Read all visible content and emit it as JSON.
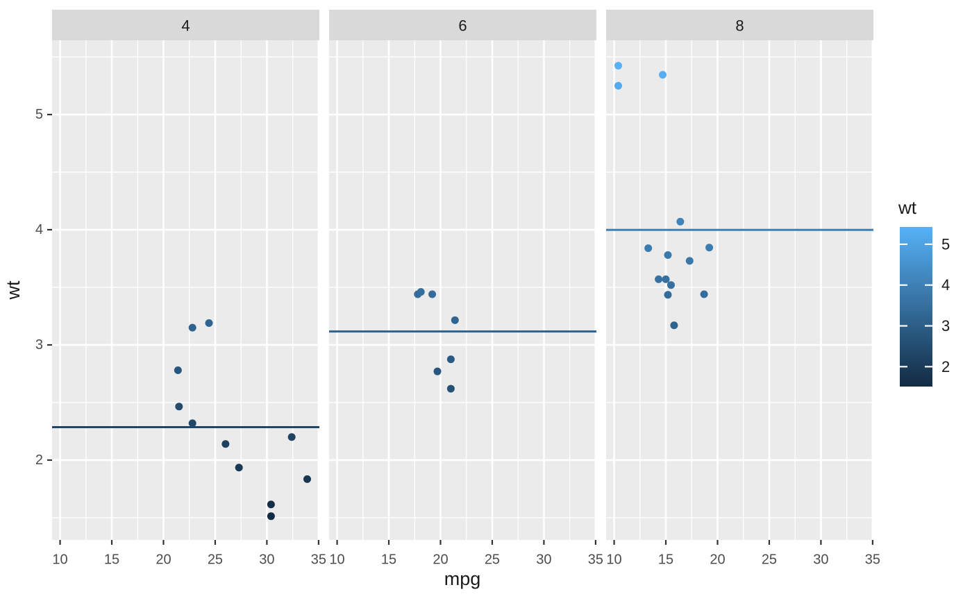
{
  "chart_data": {
    "type": "scatter",
    "title": "",
    "xlabel": "mpg",
    "ylabel": "wt",
    "facet_labels": [
      "4",
      "6",
      "8"
    ],
    "x_ticks": [
      10,
      15,
      20,
      25,
      30,
      35
    ],
    "x_minor_ticks": [
      12.5,
      17.5,
      22.5,
      27.5,
      32.5
    ],
    "y_ticks": [
      2,
      3,
      4,
      5
    ],
    "y_minor_ticks": [
      1.5,
      2.5,
      3.5,
      4.5,
      5.5
    ],
    "x_domain": [
      9.225,
      35.075
    ],
    "y_domain": [
      1.307,
      5.645
    ],
    "grid": true,
    "legend_position": "right",
    "color_scale": {
      "low": "#132B43",
      "high": "#56B1F7",
      "domain": [
        1.513,
        5.424
      ]
    },
    "legend": {
      "title": "wt",
      "ticks": [
        5,
        4,
        3,
        2
      ]
    },
    "facets": [
      {
        "label": "4",
        "mean_line_y": 2.286,
        "points": [
          [
            22.8,
            2.32
          ],
          [
            24.4,
            3.19
          ],
          [
            22.8,
            3.15
          ],
          [
            32.4,
            2.2
          ],
          [
            30.4,
            1.615
          ],
          [
            33.9,
            1.835
          ],
          [
            21.5,
            2.465
          ],
          [
            27.3,
            1.935
          ],
          [
            26.0,
            2.14
          ],
          [
            30.4,
            1.513
          ],
          [
            21.4,
            2.78
          ]
        ]
      },
      {
        "label": "6",
        "mean_line_y": 3.117,
        "points": [
          [
            21.0,
            2.62
          ],
          [
            21.0,
            2.875
          ],
          [
            21.4,
            3.215
          ],
          [
            18.1,
            3.46
          ],
          [
            19.2,
            3.44
          ],
          [
            17.8,
            3.44
          ],
          [
            19.7,
            2.77
          ]
        ]
      },
      {
        "label": "8",
        "mean_line_y": 3.999,
        "points": [
          [
            18.7,
            3.44
          ],
          [
            14.3,
            3.57
          ],
          [
            16.4,
            4.07
          ],
          [
            17.3,
            3.73
          ],
          [
            15.2,
            3.78
          ],
          [
            10.4,
            5.25
          ],
          [
            10.4,
            5.424
          ],
          [
            14.7,
            5.345
          ],
          [
            15.5,
            3.52
          ],
          [
            15.2,
            3.435
          ],
          [
            13.3,
            3.84
          ],
          [
            19.2,
            3.845
          ],
          [
            15.8,
            3.17
          ],
          [
            15.0,
            3.57
          ]
        ]
      }
    ],
    "style": {
      "background": "#FFFFFF",
      "panel_bg": "#EBEBEB",
      "strip_bg": "#D9D9D9",
      "grid_color": "#FFFFFF",
      "tick_mark_color": "#333333",
      "tick_label_color": "#4D4D4D",
      "strip_text_color": "#1A1A1A",
      "title_color": "#1A1A1A"
    }
  }
}
